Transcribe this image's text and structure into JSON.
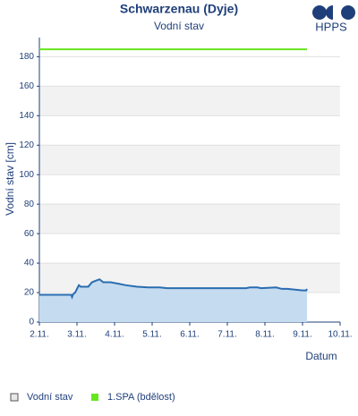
{
  "chart_data": {
    "type": "line",
    "title": "Schwarzenau (Dyje)",
    "subtitle": "Vodní stav",
    "logo": "HPPS",
    "y_label": "Vodní stav [cm]",
    "x_label": "Datum",
    "xlim": [
      2,
      10
    ],
    "xticks": [
      {
        "value": 2,
        "label": "2.11."
      },
      {
        "value": 3,
        "label": "3.11."
      },
      {
        "value": 4,
        "label": "4.11."
      },
      {
        "value": 5,
        "label": "5.11."
      },
      {
        "value": 6,
        "label": "6.11."
      },
      {
        "value": 7,
        "label": "7.11."
      },
      {
        "value": 8,
        "label": "8.11."
      },
      {
        "value": 9,
        "label": "9.11."
      },
      {
        "value": 10,
        "label": "10.11."
      }
    ],
    "ylim": [
      0,
      193
    ],
    "yticks": [
      0,
      20,
      40,
      60,
      80,
      100,
      120,
      140,
      160,
      180
    ],
    "grid": true,
    "series": [
      {
        "name": "Vodní stav",
        "color": "#2a6db0",
        "fill": "#c5dbf0",
        "x": [
          2,
          2.85,
          2.87,
          2.9,
          2.95,
          3.05,
          3.1,
          3.3,
          3.4,
          3.5,
          3.6,
          3.7,
          3.9,
          4.1,
          4.3,
          4.6,
          4.9,
          5.2,
          5.4,
          7.5,
          7.6,
          7.8,
          7.9,
          8.3,
          8.45,
          8.6,
          8.8,
          9.0,
          9.1,
          9.12
        ],
        "values": [
          18.5,
          18.5,
          17,
          19,
          20,
          25,
          24,
          24,
          27,
          28,
          29,
          27,
          27,
          26,
          25,
          24,
          23.5,
          23.5,
          23,
          23,
          23.5,
          23.5,
          23,
          23.5,
          22.5,
          22.5,
          22,
          21.5,
          21.5,
          22.5
        ]
      },
      {
        "name": "1.SPA (bdělost)",
        "color": "#66e61e",
        "x": [
          2,
          9.12
        ],
        "values": [
          185,
          185
        ]
      }
    ]
  }
}
